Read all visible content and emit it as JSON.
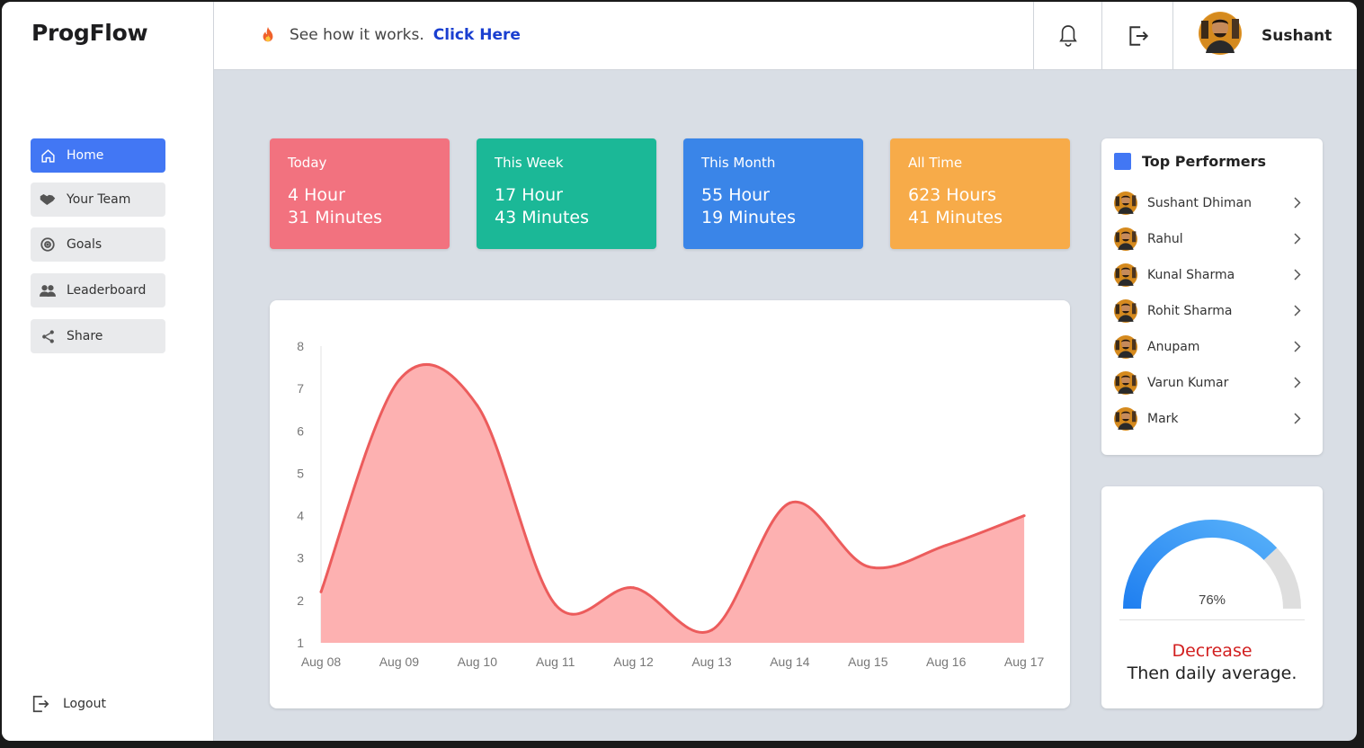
{
  "app": {
    "brand": "ProgFlow"
  },
  "sidebar": {
    "items": [
      {
        "label": "Home",
        "icon": "home-icon",
        "active": true
      },
      {
        "label": "Your Team",
        "icon": "handshake-icon",
        "active": false
      },
      {
        "label": "Goals",
        "icon": "target-icon",
        "active": false
      },
      {
        "label": "Leaderboard",
        "icon": "users-icon",
        "active": false
      },
      {
        "label": "Share",
        "icon": "share-icon",
        "active": false
      }
    ],
    "logout_label": "Logout"
  },
  "topbar": {
    "promo_text": "See how it works.",
    "promo_link": "Click Here",
    "user_name": "Sushant"
  },
  "stats": [
    {
      "label": "Today",
      "line1": "4 Hour",
      "line2": "31 Minutes",
      "color": "#f2727f"
    },
    {
      "label": "This Week",
      "line1": "17 Hour",
      "line2": "43 Minutes",
      "color": "#1bb897"
    },
    {
      "label": "This Month",
      "line1": "55 Hour",
      "line2": "19 Minutes",
      "color": "#3a85e8"
    },
    {
      "label": "All Time",
      "line1": "623 Hours",
      "line2": "41 Minutes",
      "color": "#f7ab49"
    }
  ],
  "chart_data": {
    "type": "area",
    "categories": [
      "Aug 08",
      "Aug 09",
      "Aug 10",
      "Aug 11",
      "Aug 12",
      "Aug 13",
      "Aug 14",
      "Aug 15",
      "Aug 16",
      "Aug 17"
    ],
    "values": [
      2.2,
      7.2,
      6.6,
      1.9,
      2.3,
      1.3,
      4.3,
      2.8,
      3.3,
      4.0
    ],
    "yticks": [
      "1",
      "2",
      "3",
      "4",
      "5",
      "6",
      "7",
      "8"
    ],
    "ylim": [
      1,
      8
    ],
    "line_color": "#ec5c5c",
    "fill_color": "#fdb1b1"
  },
  "performers": {
    "title": "Top Performers",
    "names": [
      "Sushant Dhiman",
      "Rahul",
      "Kunal Sharma",
      "Rohit Sharma",
      "Anupam",
      "Varun Kumar",
      "Mark"
    ]
  },
  "gauge": {
    "value": 0.76,
    "label": "76%",
    "status": "Decrease",
    "note": "Then daily average."
  }
}
